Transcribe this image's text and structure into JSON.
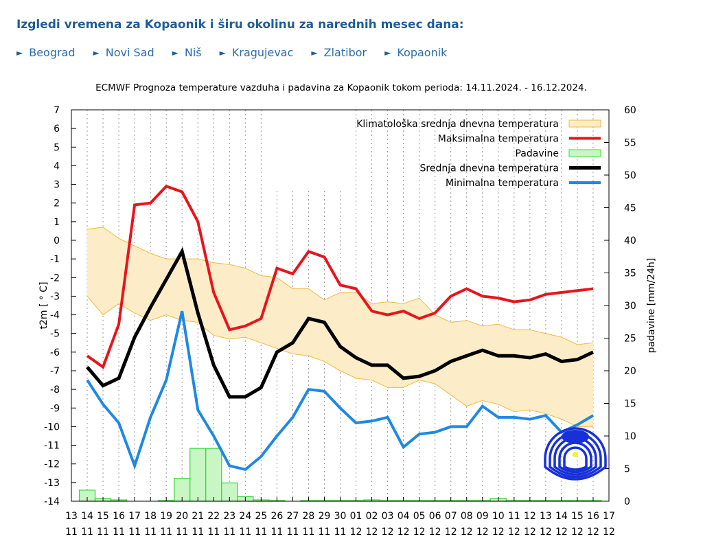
{
  "header": {
    "title": "Izgledi vremena za Kopaonik i širu okolinu za narednih mesec dana:"
  },
  "nav": {
    "icon": "play-arrow-icon",
    "items": [
      {
        "label": "Beograd"
      },
      {
        "label": "Novi Sad"
      },
      {
        "label": "Niš"
      },
      {
        "label": "Kragujevac"
      },
      {
        "label": "Zlatibor"
      },
      {
        "label": "Kopaonik"
      }
    ]
  },
  "chart_data": {
    "type": "line",
    "title": "ECMWF Prognoza temperature vazduha i padavina za Kopaonik tokom perioda: 14.11.2024. - 16.12.2024.",
    "ylabel": "t2m [ ° C]",
    "y2label": "padavine [mm/24h]",
    "ylim": [
      -14,
      7
    ],
    "y2lim": [
      0,
      60
    ],
    "grid": "vertical dotted",
    "legend_position": "top-right",
    "x_ticks": [
      [
        "13",
        "11"
      ],
      [
        "14",
        "11"
      ],
      [
        "15",
        "11"
      ],
      [
        "16",
        "11"
      ],
      [
        "17",
        "11"
      ],
      [
        "18",
        "11"
      ],
      [
        "19",
        "11"
      ],
      [
        "20",
        "11"
      ],
      [
        "21",
        "11"
      ],
      [
        "22",
        "11"
      ],
      [
        "23",
        "11"
      ],
      [
        "24",
        "11"
      ],
      [
        "25",
        "11"
      ],
      [
        "26",
        "11"
      ],
      [
        "27",
        "11"
      ],
      [
        "28",
        "11"
      ],
      [
        "29",
        "11"
      ],
      [
        "30",
        "11"
      ],
      [
        "01",
        "12"
      ],
      [
        "02",
        "12"
      ],
      [
        "03",
        "12"
      ],
      [
        "04",
        "12"
      ],
      [
        "05",
        "12"
      ],
      [
        "06",
        "12"
      ],
      [
        "07",
        "12"
      ],
      [
        "08",
        "12"
      ],
      [
        "09",
        "12"
      ],
      [
        "10",
        "12"
      ],
      [
        "11",
        "12"
      ],
      [
        "12",
        "12"
      ],
      [
        "13",
        "12"
      ],
      [
        "14",
        "12"
      ],
      [
        "15",
        "12"
      ],
      [
        "16",
        "12"
      ],
      [
        "17",
        "12"
      ]
    ],
    "x": [
      "14.11",
      "15.11",
      "16.11",
      "17.11",
      "18.11",
      "19.11",
      "20.11",
      "21.11",
      "22.11",
      "23.11",
      "24.11",
      "25.11",
      "26.11",
      "27.11",
      "28.11",
      "29.11",
      "30.11",
      "01.12",
      "02.12",
      "03.12",
      "04.12",
      "05.12",
      "06.12",
      "07.12",
      "08.12",
      "09.12",
      "10.12",
      "11.12",
      "12.12",
      "13.12",
      "14.12",
      "15.12",
      "16.12"
    ],
    "series": [
      {
        "name": "Klimatološka srednja dnevna temperatura",
        "kind": "band",
        "color": "#fdecc8",
        "edge": "#f0b840",
        "upper": [
          0.6,
          0.7,
          0.1,
          -0.3,
          -0.7,
          -1.0,
          -1.0,
          -1.0,
          -1.2,
          -1.3,
          -1.5,
          -1.9,
          -2.0,
          -2.6,
          -2.6,
          -3.2,
          -2.8,
          -2.8,
          -3.4,
          -3.3,
          -3.4,
          -3.1,
          -4.0,
          -4.4,
          -4.3,
          -4.6,
          -4.5,
          -4.8,
          -4.8,
          -5.0,
          -5.2,
          -5.6,
          -5.5
        ],
        "lower": [
          -3.0,
          -4.0,
          -3.4,
          -3.9,
          -4.3,
          -4.0,
          -4.3,
          -4.4,
          -5.1,
          -5.3,
          -5.2,
          -5.5,
          -5.8,
          -6.1,
          -6.2,
          -6.5,
          -7.0,
          -7.4,
          -7.5,
          -7.9,
          -7.9,
          -7.5,
          -7.7,
          -8.3,
          -8.9,
          -8.6,
          -8.8,
          -9.2,
          -9.1,
          -9.3,
          -9.6,
          -10.0,
          -10.0
        ]
      },
      {
        "name": "Maksimalna temperatura",
        "kind": "line",
        "color": "#e8141c",
        "values": [
          -6.2,
          -6.8,
          -4.5,
          1.9,
          2.0,
          2.9,
          2.6,
          1.0,
          -2.8,
          -4.8,
          -4.6,
          -4.2,
          -1.5,
          -1.8,
          -0.6,
          -0.9,
          -2.4,
          -2.6,
          -3.8,
          -4.0,
          -3.8,
          -4.2,
          -3.9,
          -3.0,
          -2.6,
          -3.0,
          -3.1,
          -3.3,
          -3.2,
          -2.9,
          -2.8,
          -2.7,
          -2.6
        ]
      },
      {
        "name": "Padavine",
        "kind": "bar",
        "axis": "right",
        "color": "#c8f7c5",
        "edge": "#3cd83c",
        "values": [
          1.7,
          0.4,
          0.2,
          0,
          0,
          0.1,
          3.5,
          8.1,
          8.1,
          2.8,
          0.7,
          0.2,
          0.1,
          0,
          0.1,
          0.1,
          0.1,
          0.1,
          0.2,
          0.1,
          0.1,
          0.1,
          0.1,
          0.1,
          0.1,
          0.1,
          0.4,
          0.1,
          0.1,
          0.1,
          0.1,
          0.1,
          0.1
        ]
      },
      {
        "name": "Srednja dnevna temperatura",
        "kind": "line",
        "color": "#000000",
        "values": [
          -6.8,
          -7.8,
          -7.4,
          -5.2,
          -3.6,
          -2.1,
          -0.6,
          -3.9,
          -6.7,
          -8.4,
          -8.4,
          -7.9,
          -6.0,
          -5.5,
          -4.2,
          -4.4,
          -5.7,
          -6.3,
          -6.7,
          -6.7,
          -7.4,
          -7.3,
          -7.0,
          -6.5,
          -6.2,
          -5.9,
          -6.2,
          -6.2,
          -6.3,
          -6.1,
          -6.5,
          -6.4,
          -6.0
        ]
      },
      {
        "name": "Minimalna temperatura",
        "kind": "line",
        "color": "#1e88e5",
        "values": [
          -7.5,
          -8.8,
          -9.8,
          -12.1,
          -9.5,
          -7.5,
          -3.8,
          -9.1,
          -10.5,
          -12.1,
          -12.3,
          -11.6,
          -10.5,
          -9.5,
          -8.0,
          -8.1,
          -9.0,
          -9.8,
          -9.7,
          -9.5,
          -11.1,
          -10.4,
          -10.3,
          -10.0,
          -10.0,
          -8.9,
          -9.5,
          -9.5,
          -9.6,
          -9.4,
          -10.3,
          -9.9,
          -9.4
        ]
      }
    ],
    "logo": "rhmz-srbije-logo"
  }
}
